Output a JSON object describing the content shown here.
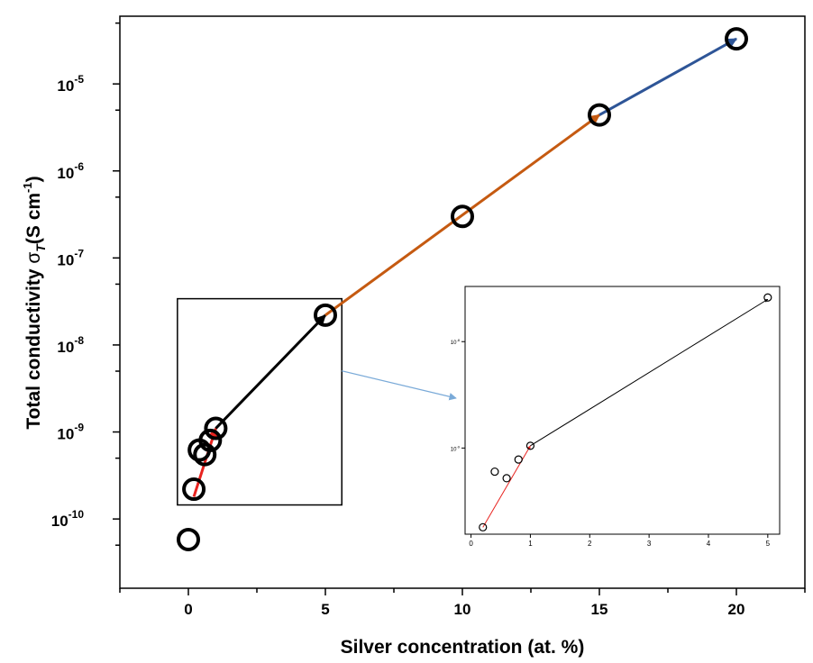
{
  "chart_data": {
    "type": "scatter",
    "title": "",
    "xlabel": "Silver concentration (at. %)",
    "ylabel": {
      "main": "Total conductivity ",
      "sigma": "σ",
      "sub": "T",
      "units_open": "(S cm",
      "units_sup": "-1",
      "units_close": ")"
    },
    "xlim": [
      -2.5,
      22.5
    ],
    "ylim": [
      1.6e-11,
      6e-05
    ],
    "yscale": "log",
    "x_ticks": [
      {
        "value": 0,
        "label": "0"
      },
      {
        "value": 5,
        "label": "5"
      },
      {
        "value": 10,
        "label": "10"
      },
      {
        "value": 15,
        "label": "15"
      },
      {
        "value": 20,
        "label": "20"
      }
    ],
    "y_ticks": [
      {
        "value": 1e-10,
        "base": "10",
        "exp": "-10"
      },
      {
        "value": 1e-09,
        "base": "10",
        "exp": "-9"
      },
      {
        "value": 1e-08,
        "base": "10",
        "exp": "-8"
      },
      {
        "value": 1e-07,
        "base": "10",
        "exp": "-7"
      },
      {
        "value": 1e-06,
        "base": "10",
        "exp": "-6"
      },
      {
        "value": 1e-05,
        "base": "10",
        "exp": "-5"
      }
    ],
    "grid": false,
    "legend": "none",
    "points": [
      {
        "x": 0,
        "y": 5.8e-11
      },
      {
        "x": 0.2,
        "y": 2.2e-10
      },
      {
        "x": 0.4,
        "y": 6.2e-10
      },
      {
        "x": 0.6,
        "y": 5.5e-10
      },
      {
        "x": 0.8,
        "y": 8e-10
      },
      {
        "x": 1.0,
        "y": 1.1e-09
      },
      {
        "x": 5,
        "y": 2.2e-08
      },
      {
        "x": 10,
        "y": 3e-07
      },
      {
        "x": 15,
        "y": 4.4e-06
      },
      {
        "x": 20,
        "y": 3.3e-05
      }
    ],
    "trend_arrows": [
      {
        "from": {
          "x": 0.2,
          "y": 1.8e-10
        },
        "to": {
          "x": 1.0,
          "y": 1.1e-09
        },
        "color": "#e8231f"
      },
      {
        "from": {
          "x": 1.0,
          "y": 1.1e-09
        },
        "to": {
          "x": 5,
          "y": 2.2e-08
        },
        "color": "#000000"
      },
      {
        "from": {
          "x": 5,
          "y": 2.2e-08
        },
        "to": {
          "x": 15,
          "y": 4.4e-06
        },
        "color": "#c55a11"
      },
      {
        "from": {
          "x": 15,
          "y": 4.4e-06
        },
        "to": {
          "x": 20,
          "y": 3.3e-05
        },
        "color": "#2e5597"
      }
    ],
    "zoom_box": {
      "x": [
        -0.4,
        5.6
      ],
      "y": [
        1.45e-10,
        3.4e-08
      ]
    },
    "inset": {
      "xlim": [
        -0.1,
        5.2
      ],
      "yscale": "log",
      "ylim": [
        1.55e-10,
        3.3e-08
      ],
      "x_ticks": [
        {
          "value": 0,
          "label": "0"
        },
        {
          "value": 1,
          "label": "1"
        },
        {
          "value": 2,
          "label": "2"
        },
        {
          "value": 3,
          "label": "3"
        },
        {
          "value": 4,
          "label": "4"
        },
        {
          "value": 5,
          "label": "5"
        }
      ],
      "y_ticks": [
        {
          "value": 1e-09,
          "base": "10",
          "exp": "-9"
        },
        {
          "value": 1e-08,
          "base": "10",
          "exp": "-8"
        }
      ],
      "points": [
        {
          "x": 0.2,
          "y": 1.8e-10
        },
        {
          "x": 0.4,
          "y": 6e-10
        },
        {
          "x": 0.6,
          "y": 5.2e-10
        },
        {
          "x": 0.8,
          "y": 7.8e-10
        },
        {
          "x": 1.0,
          "y": 1.05e-09
        },
        {
          "x": 5,
          "y": 2.6e-08
        }
      ],
      "trend_arrows": [
        {
          "from": {
            "x": 0.2,
            "y": 1.8e-10
          },
          "to": {
            "x": 1.0,
            "y": 1.05e-09
          },
          "color": "#e8231f"
        },
        {
          "from": {
            "x": 1.0,
            "y": 1.05e-09
          },
          "to": {
            "x": 5,
            "y": 2.5e-08
          },
          "color": "#000000"
        }
      ]
    },
    "colors": {
      "connector": "#7aaad8",
      "marker": "#000000"
    }
  }
}
